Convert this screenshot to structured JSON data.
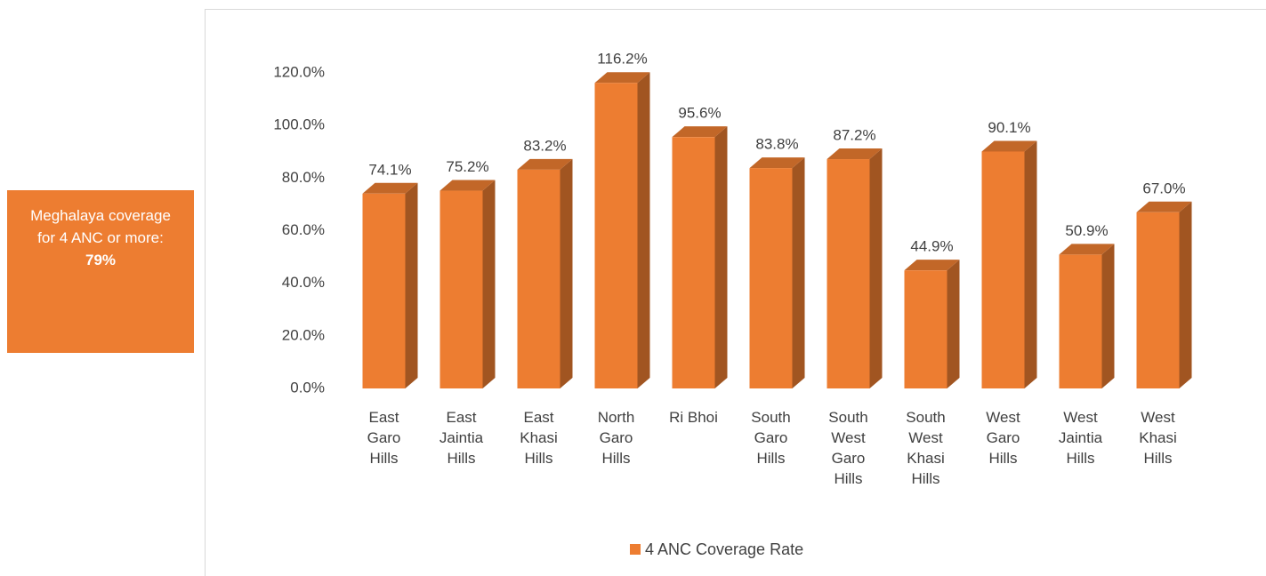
{
  "annotation": {
    "text": "Meghalaya coverage for 4 ANC or more:",
    "highlight": "79%"
  },
  "chart_data": {
    "type": "bar3d",
    "categories": [
      "East Garo Hills",
      "East Jaintia Hills",
      "East Khasi Hills",
      "North Garo Hills",
      "Ri Bhoi",
      "South Garo Hills",
      "South West Garo Hills",
      "South West Khasi Hills",
      "West Garo Hills",
      "West Jaintia Hills",
      "West Khasi Hills"
    ],
    "series": [
      {
        "name": "4 ANC Coverage Rate",
        "color": "#ed7d31",
        "values": [
          74.1,
          75.2,
          83.2,
          116.2,
          95.6,
          83.8,
          87.2,
          44.9,
          90.1,
          50.9,
          67.0
        ],
        "value_labels": [
          "74.1%",
          "75.2%",
          "83.2%",
          "116.2%",
          "95.6%",
          "83.8%",
          "87.2%",
          "44.9%",
          "90.1%",
          "50.9%",
          "67.0%"
        ]
      }
    ],
    "ylim": [
      0,
      120
    ],
    "yticks": [
      {
        "value": 0,
        "label": "0.0%"
      },
      {
        "value": 20,
        "label": "20.0%"
      },
      {
        "value": 40,
        "label": "40.0%"
      },
      {
        "value": 60,
        "label": "60.0%"
      },
      {
        "value": 80,
        "label": "80.0%"
      },
      {
        "value": 100,
        "label": "100.0%"
      },
      {
        "value": 120,
        "label": "120.0%"
      }
    ],
    "legend": "bottom"
  }
}
